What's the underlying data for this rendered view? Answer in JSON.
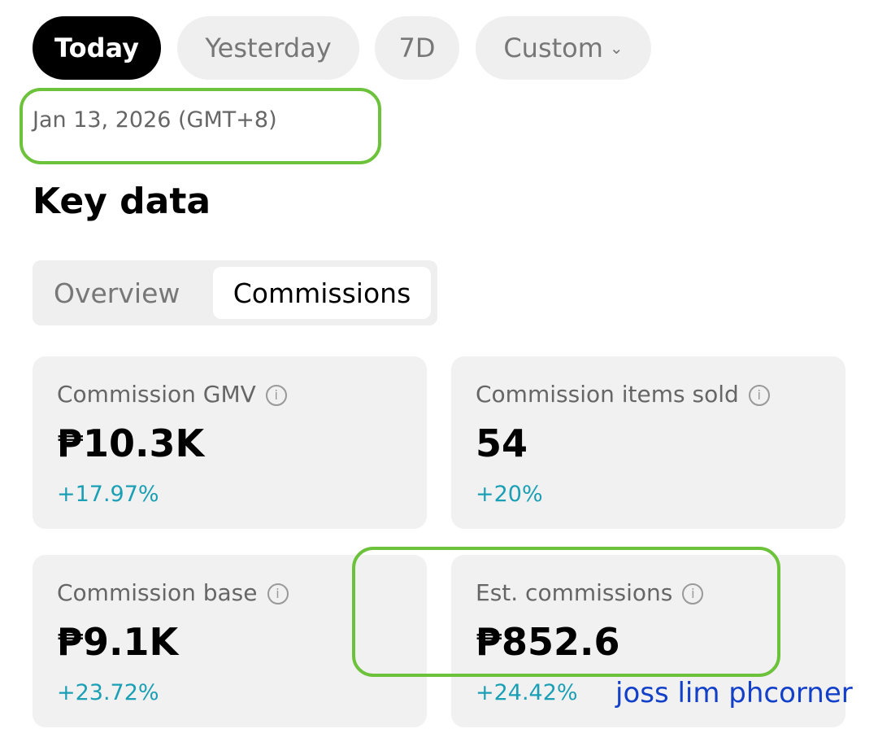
{
  "tabs": [
    "Today",
    "Yesterday",
    "7D",
    "Custom"
  ],
  "date": "Jan 13, 2026 (GMT+8)",
  "section_title": "Key data",
  "segments": [
    "Overview",
    "Commissions"
  ],
  "cards": [
    {
      "label": "Commission GMV",
      "value": "₱10.3K",
      "change": "+17.97%"
    },
    {
      "label": "Commission items sold",
      "value": "54",
      "change": "+20%"
    },
    {
      "label": "Commission base",
      "value": "₱9.1K",
      "change": "+23.72%"
    },
    {
      "label": "Est. commissions",
      "value": "₱852.6",
      "change": "+24.42%"
    }
  ],
  "watermark": "joss lim phcorner"
}
